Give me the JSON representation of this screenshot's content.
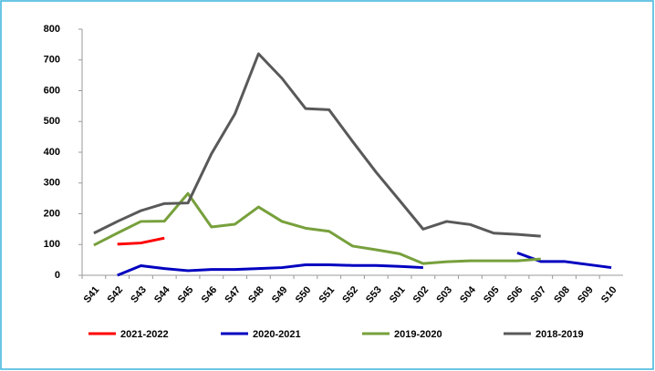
{
  "chart_data": {
    "type": "line",
    "categories": [
      "S41",
      "S42",
      "S43",
      "S44",
      "S45",
      "S46",
      "S47",
      "S48",
      "S49",
      "S50",
      "S51",
      "S52",
      "S53",
      "S01",
      "S02",
      "S03",
      "S04",
      "S05",
      "S06",
      "S07",
      "S08",
      "S09",
      "S10"
    ],
    "series": [
      {
        "name": "2021-2022",
        "color": "#ff0000",
        "values": [
          null,
          101,
          105,
          121,
          null,
          null,
          null,
          null,
          null,
          null,
          null,
          null,
          null,
          null,
          null,
          null,
          null,
          null,
          null,
          null,
          null,
          null,
          null
        ]
      },
      {
        "name": "2020-2021",
        "color": "#0000c0",
        "values": [
          null,
          0,
          31,
          22,
          15,
          19,
          19,
          22,
          25,
          34,
          34,
          32,
          32,
          29,
          25,
          null,
          null,
          null,
          73,
          45,
          45,
          35,
          25
        ]
      },
      {
        "name": "2019-2020",
        "color": "#77a03c",
        "values": [
          98,
          137,
          175,
          176,
          266,
          157,
          166,
          222,
          175,
          153,
          143,
          95,
          83,
          70,
          38,
          44,
          47,
          47,
          47,
          53,
          null,
          null,
          null
        ]
      },
      {
        "name": "2018-2019",
        "color": "#595959",
        "values": [
          137,
          175,
          210,
          233,
          235,
          395,
          525,
          720,
          640,
          542,
          538,
          435,
          335,
          243,
          150,
          175,
          165,
          137,
          133,
          127,
          null,
          null,
          null
        ]
      }
    ],
    "ylim": [
      0,
      800
    ],
    "yticks": [
      0,
      100,
      200,
      300,
      400,
      500,
      600,
      700,
      800
    ],
    "grid": false,
    "legend": "bottom"
  }
}
